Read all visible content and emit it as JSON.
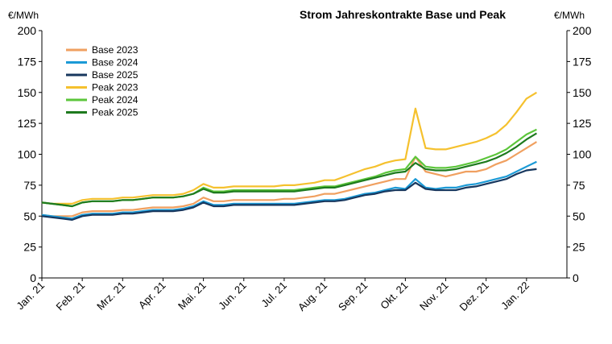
{
  "chart_data": {
    "type": "line",
    "title": "Strom Jahreskontrakte Base und Peak",
    "ylabel_left": "€/MWh",
    "ylabel_right": "€/MWh",
    "ylim": [
      0,
      200
    ],
    "yticks": [
      0,
      25,
      50,
      75,
      100,
      125,
      150,
      175,
      200
    ],
    "legend_position": "top-left",
    "categories": [
      "Jan. 21",
      "Feb. 21",
      "Mrz. 21",
      "Apr. 21",
      "Mai. 21",
      "Jun. 21",
      "Jul. 21",
      "Aug. 21",
      "Sep. 21",
      "Okt. 21",
      "Nov. 21",
      "Dez. 21",
      "Jan. 22"
    ],
    "x": [
      0,
      0.25,
      0.5,
      0.75,
      1,
      1.25,
      1.5,
      1.75,
      2,
      2.25,
      2.5,
      2.75,
      3,
      3.25,
      3.5,
      3.75,
      4,
      4.25,
      4.5,
      4.75,
      5,
      5.25,
      5.5,
      5.75,
      6,
      6.25,
      6.5,
      6.75,
      7,
      7.25,
      7.5,
      7.75,
      8,
      8.25,
      8.5,
      8.75,
      9,
      9.25,
      9.5,
      9.75,
      10,
      10.25,
      10.5,
      10.75,
      11,
      11.25,
      11.5,
      11.75,
      12,
      12.25
    ],
    "series": [
      {
        "name": "Base 2023",
        "color": "#F0A060",
        "values": [
          51,
          50,
          50,
          50,
          53,
          54,
          54,
          54,
          55,
          55,
          56,
          57,
          57,
          57,
          58,
          60,
          65,
          62,
          62,
          63,
          63,
          63,
          63,
          63,
          64,
          64,
          65,
          66,
          68,
          68,
          70,
          72,
          74,
          76,
          78,
          80,
          80,
          98,
          86,
          84,
          82,
          84,
          86,
          86,
          88,
          92,
          95,
          100,
          105,
          110
        ]
      },
      {
        "name": "Base 2024",
        "color": "#1B9AD6",
        "values": [
          51,
          50,
          49,
          48,
          51,
          52,
          52,
          52,
          53,
          53,
          54,
          55,
          55,
          55,
          56,
          58,
          62,
          59,
          59,
          60,
          60,
          60,
          60,
          60,
          60,
          60,
          61,
          62,
          63,
          63,
          64,
          66,
          68,
          69,
          71,
          73,
          72,
          80,
          73,
          72,
          73,
          73,
          75,
          76,
          78,
          80,
          82,
          86,
          90,
          94
        ]
      },
      {
        "name": "Base 2025",
        "color": "#17375E",
        "values": [
          50,
          49,
          48,
          47,
          50,
          51,
          51,
          51,
          52,
          52,
          53,
          54,
          54,
          54,
          55,
          57,
          61,
          58,
          58,
          59,
          59,
          59,
          59,
          59,
          59,
          59,
          60,
          61,
          62,
          62,
          63,
          65,
          67,
          68,
          70,
          71,
          71,
          77,
          72,
          71,
          71,
          71,
          73,
          74,
          76,
          78,
          80,
          84,
          87,
          88
        ]
      },
      {
        "name": "Peak 2023",
        "color": "#F5C12E",
        "values": [
          61,
          60,
          60,
          60,
          63,
          64,
          64,
          64,
          65,
          65,
          66,
          67,
          67,
          67,
          68,
          71,
          76,
          73,
          73,
          74,
          74,
          74,
          74,
          74,
          75,
          75,
          76,
          77,
          79,
          79,
          82,
          85,
          88,
          90,
          93,
          95,
          96,
          137,
          105,
          104,
          104,
          106,
          108,
          110,
          113,
          117,
          124,
          134,
          145,
          150
        ]
      },
      {
        "name": "Peak 2024",
        "color": "#5CC63B",
        "values": [
          61,
          60,
          59,
          58,
          61,
          62,
          62,
          62,
          63,
          63,
          64,
          65,
          65,
          65,
          66,
          68,
          73,
          70,
          70,
          71,
          71,
          71,
          71,
          71,
          71,
          71,
          72,
          73,
          74,
          74,
          76,
          78,
          80,
          82,
          85,
          87,
          88,
          98,
          90,
          89,
          89,
          90,
          92,
          94,
          97,
          100,
          104,
          110,
          116,
          120
        ]
      },
      {
        "name": "Peak 2025",
        "color": "#1E7A1E",
        "values": [
          61,
          60,
          59,
          58,
          61,
          62,
          62,
          62,
          63,
          63,
          64,
          65,
          65,
          65,
          66,
          68,
          72,
          69,
          69,
          70,
          70,
          70,
          70,
          70,
          70,
          70,
          71,
          72,
          73,
          73,
          75,
          77,
          79,
          81,
          83,
          85,
          86,
          93,
          88,
          87,
          87,
          88,
          90,
          92,
          94,
          97,
          101,
          106,
          112,
          117
        ]
      }
    ]
  }
}
